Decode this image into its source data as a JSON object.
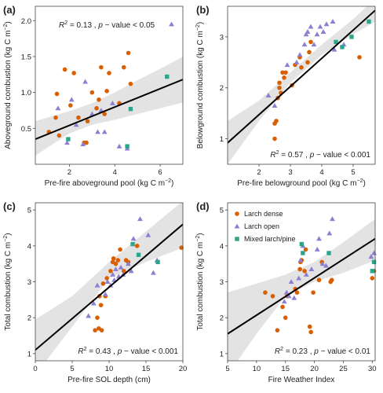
{
  "series_styles": [
    {
      "name": "Larch dense",
      "marker": "circle",
      "color": "#d95f02"
    },
    {
      "name": "Larch open",
      "marker": "triangle",
      "color": "#8c7fd1"
    },
    {
      "name": "Mixed larch/pine",
      "marker": "square",
      "color": "#2ca58d"
    }
  ],
  "chart_data": [
    {
      "type": "scatter",
      "panel": "(a)",
      "xlabel_main": "Pre-fire aboveground pool (kg C m",
      "xlabel_unit_exp": "−2",
      "xlabel_close": ")",
      "ylabel_main": "Aboveground combustion (kg C m",
      "ylabel_unit_exp": "−2",
      "ylabel_close": ")",
      "xlim": [
        0.5,
        7
      ],
      "ylim": [
        0,
        2.2
      ],
      "xticks": [
        2,
        4,
        6
      ],
      "yticks": [
        0.5,
        1.0,
        1.5,
        2.0
      ],
      "ytick_format": 1,
      "stat_r2": "= 0.13 ,",
      "stat_p": "− value < 0.05",
      "stat_pos": "top-left",
      "fit_line": {
        "x": [
          0.5,
          7
        ],
        "y": [
          0.35,
          1.18
        ]
      },
      "conf_band": {
        "x": [
          0.5,
          2,
          3,
          4,
          5,
          6,
          7
        ],
        "upper": [
          0.6,
          0.74,
          0.85,
          1.0,
          1.17,
          1.33,
          1.5
        ],
        "lower": [
          0.12,
          0.43,
          0.55,
          0.62,
          0.7,
          0.78,
          0.86
        ]
      },
      "series": [
        {
          "name": "Larch dense",
          "points": [
            [
              1.1,
              0.45
            ],
            [
              1.4,
              0.65
            ],
            [
              1.45,
              0.98
            ],
            [
              1.55,
              0.4
            ],
            [
              1.8,
              1.32
            ],
            [
              2.05,
              0.82
            ],
            [
              2.2,
              1.27
            ],
            [
              2.4,
              0.65
            ],
            [
              2.65,
              0.3
            ],
            [
              2.75,
              0.3
            ],
            [
              2.8,
              0.6
            ],
            [
              3.0,
              1.0
            ],
            [
              3.2,
              0.78
            ],
            [
              3.3,
              0.9
            ],
            [
              3.4,
              1.35
            ],
            [
              3.55,
              0.7
            ],
            [
              3.65,
              1.02
            ],
            [
              3.75,
              1.27
            ],
            [
              4.2,
              0.85
            ],
            [
              4.4,
              1.35
            ],
            [
              4.6,
              1.55
            ],
            [
              4.7,
              1.12
            ]
          ]
        },
        {
          "name": "Larch open",
          "points": [
            [
              1.5,
              0.78
            ],
            [
              1.9,
              0.3
            ],
            [
              2.1,
              0.9
            ],
            [
              2.3,
              0.55
            ],
            [
              2.6,
              0.28
            ],
            [
              2.7,
              1.15
            ],
            [
              3.0,
              0.7
            ],
            [
              3.25,
              0.45
            ],
            [
              3.4,
              0.75
            ],
            [
              3.55,
              0.45
            ],
            [
              3.9,
              0.85
            ],
            [
              4.2,
              0.25
            ],
            [
              4.55,
              0.22
            ],
            [
              6.5,
              1.95
            ]
          ]
        },
        {
          "name": "Mixed larch/pine",
          "points": [
            [
              1.95,
              0.35
            ],
            [
              4.55,
              0.25
            ],
            [
              4.7,
              0.77
            ],
            [
              6.3,
              1.22
            ]
          ]
        }
      ]
    },
    {
      "type": "scatter",
      "panel": "(b)",
      "xlabel_main": "Pre-fire belowground pool (kg C m",
      "xlabel_unit_exp": "−2",
      "xlabel_close": ")",
      "ylabel_main": "Belowground combustion (kg C m",
      "ylabel_unit_exp": "−2",
      "ylabel_close": ")",
      "xlim": [
        1,
        5.7
      ],
      "ylim": [
        0.5,
        3.6
      ],
      "xticks": [
        2,
        3,
        4,
        5
      ],
      "yticks": [
        1,
        2,
        3
      ],
      "ytick_format": 0,
      "stat_r2": "= 0.57 ,",
      "stat_p": "− value < 0.001",
      "stat_pos": "bottom-right",
      "fit_line": {
        "x": [
          1,
          5.7
        ],
        "y": [
          0.92,
          3.52
        ]
      },
      "conf_band": {
        "x": [
          1,
          2,
          3,
          4,
          5,
          5.7
        ],
        "upper": [
          1.35,
          1.75,
          2.3,
          2.85,
          3.35,
          3.75
        ],
        "lower": [
          0.5,
          1.35,
          2.1,
          2.65,
          3.05,
          3.3
        ]
      },
      "series": [
        {
          "name": "Larch dense",
          "points": [
            [
              2.5,
              1.0
            ],
            [
              2.5,
              1.3
            ],
            [
              2.55,
              1.35
            ],
            [
              2.6,
              1.8
            ],
            [
              2.65,
              2.0
            ],
            [
              2.65,
              2.1
            ],
            [
              2.7,
              1.9
            ],
            [
              2.75,
              2.3
            ],
            [
              2.8,
              2.2
            ],
            [
              2.85,
              2.3
            ],
            [
              3.05,
              2.05
            ],
            [
              3.15,
              2.45
            ],
            [
              3.3,
              2.6
            ],
            [
              3.35,
              2.4
            ],
            [
              3.55,
              2.5
            ],
            [
              3.6,
              2.7
            ],
            [
              3.65,
              2.9
            ],
            [
              5.2,
              2.6
            ]
          ]
        },
        {
          "name": "Larch open",
          "points": [
            [
              2.3,
              1.85
            ],
            [
              2.5,
              1.65
            ],
            [
              2.9,
              2.45
            ],
            [
              3.2,
              2.5
            ],
            [
              3.3,
              2.65
            ],
            [
              3.45,
              2.85
            ],
            [
              3.5,
              3.05
            ],
            [
              3.55,
              3.1
            ],
            [
              3.65,
              3.2
            ],
            [
              3.75,
              2.85
            ],
            [
              3.85,
              3.05
            ],
            [
              3.95,
              3.2
            ],
            [
              4.05,
              3.1
            ],
            [
              4.15,
              3.25
            ],
            [
              4.35,
              3.3
            ],
            [
              4.4,
              2.75
            ],
            [
              4.7,
              2.85
            ]
          ]
        },
        {
          "name": "Mixed larch/pine",
          "points": [
            [
              4.45,
              2.9
            ],
            [
              4.65,
              2.8
            ],
            [
              4.95,
              3.0
            ],
            [
              5.5,
              3.3
            ]
          ]
        }
      ]
    },
    {
      "type": "scatter",
      "panel": "(c)",
      "xlabel_main": "Pre-fire SOL depth (cm)",
      "xlabel_unit_exp": "",
      "xlabel_close": "",
      "ylabel_main": "Total combustion (kg C m",
      "ylabel_unit_exp": "−2",
      "ylabel_close": ")",
      "xlim": [
        0,
        20
      ],
      "ylim": [
        0.8,
        5.2
      ],
      "xticks": [
        0,
        5,
        10,
        15,
        20
      ],
      "yticks": [
        1,
        2,
        3,
        4,
        5
      ],
      "ytick_format": 0,
      "stat_r2": "= 0.43 ,",
      "stat_p": "− value < 0.001",
      "stat_pos": "bottom-right",
      "fit_line": {
        "x": [
          0,
          20
        ],
        "y": [
          1.1,
          4.6
        ]
      },
      "conf_band": {
        "x": [
          0,
          5,
          10,
          15,
          20
        ],
        "upper": [
          1.95,
          2.6,
          3.55,
          4.4,
          5.25
        ],
        "lower": [
          0.4,
          1.75,
          3.1,
          3.55,
          3.95
        ]
      },
      "series": [
        {
          "name": "Larch dense",
          "points": [
            [
              8.1,
              1.65
            ],
            [
              8.4,
              2.0
            ],
            [
              8.6,
              1.7
            ],
            [
              8.7,
              2.6
            ],
            [
              8.9,
              2.35
            ],
            [
              9.0,
              1.65
            ],
            [
              9.2,
              2.95
            ],
            [
              9.5,
              2.6
            ],
            [
              9.7,
              3.1
            ],
            [
              10.2,
              3.3
            ],
            [
              10.5,
              3.55
            ],
            [
              10.6,
              3.65
            ],
            [
              10.9,
              3.5
            ],
            [
              11.2,
              3.6
            ],
            [
              11.5,
              3.9
            ],
            [
              12.0,
              3.3
            ],
            [
              12.3,
              3.6
            ],
            [
              12.6,
              3.55
            ],
            [
              13.8,
              4.0
            ],
            [
              19.8,
              3.95
            ]
          ]
        },
        {
          "name": "Larch open",
          "points": [
            [
              7.2,
              2.05
            ],
            [
              7.9,
              2.4
            ],
            [
              8.4,
              2.9
            ],
            [
              9.5,
              2.65
            ],
            [
              9.8,
              3.0
            ],
            [
              10.2,
              2.9
            ],
            [
              10.5,
              3.2
            ],
            [
              10.7,
              3.05
            ],
            [
              10.9,
              3.35
            ],
            [
              11.3,
              3.15
            ],
            [
              11.6,
              3.4
            ],
            [
              11.9,
              3.2
            ],
            [
              12.6,
              3.5
            ],
            [
              13.0,
              3.3
            ],
            [
              13.3,
              4.2
            ],
            [
              14.2,
              4.75
            ],
            [
              15.3,
              4.3
            ],
            [
              16.0,
              3.25
            ],
            [
              16.5,
              3.6
            ]
          ]
        },
        {
          "name": "Mixed larch/pine",
          "points": [
            [
              13.2,
              4.05
            ],
            [
              14.0,
              3.75
            ],
            [
              16.6,
              3.55
            ]
          ]
        }
      ]
    },
    {
      "type": "scatter",
      "panel": "(d)",
      "xlabel_main": "Fire Weather Index",
      "xlabel_unit_exp": "",
      "xlabel_close": "",
      "ylabel_main": "Total combustion (kg C m",
      "ylabel_unit_exp": "−2",
      "ylabel_close": ")",
      "xlim": [
        5,
        30.5
      ],
      "ylim": [
        0.8,
        5.2
      ],
      "xticks": [
        5,
        10,
        15,
        20,
        25,
        30
      ],
      "yticks": [
        1,
        2,
        3,
        4,
        5
      ],
      "ytick_format": 0,
      "stat_r2": "= 0.23 ,",
      "stat_p": "− value < 0.01",
      "stat_pos": "bottom-right",
      "legend": "top-left",
      "fit_line": {
        "x": [
          5,
          30.5
        ],
        "y": [
          1.55,
          4.2
        ]
      },
      "conf_band": {
        "x": [
          5,
          10,
          15,
          20,
          25,
          30.5
        ],
        "upper": [
          2.7,
          2.95,
          3.2,
          3.55,
          4.1,
          4.75
        ],
        "lower": [
          0.4,
          1.55,
          2.6,
          3.0,
          3.25,
          3.6
        ]
      },
      "series": [
        {
          "name": "Larch dense",
          "points": [
            [
              11.5,
              2.7
            ],
            [
              12.8,
              2.6
            ],
            [
              13.6,
              1.65
            ],
            [
              14.5,
              2.3
            ],
            [
              15.0,
              2.0
            ],
            [
              15.3,
              2.6
            ],
            [
              16.7,
              2.8
            ],
            [
              17.0,
              2.7
            ],
            [
              17.5,
              3.35
            ],
            [
              17.6,
              3.55
            ],
            [
              17.8,
              3.6
            ],
            [
              18.3,
              3.3
            ],
            [
              18.5,
              3.9
            ],
            [
              19.2,
              1.75
            ],
            [
              19.4,
              1.6
            ],
            [
              19.8,
              2.7
            ],
            [
              20.8,
              3.05
            ],
            [
              21.3,
              3.55
            ],
            [
              22.8,
              3.0
            ],
            [
              23.0,
              3.05
            ],
            [
              30.0,
              3.1
            ],
            [
              30.3,
              3.3
            ]
          ]
        },
        {
          "name": "Larch open",
          "points": [
            [
              14.8,
              2.45
            ],
            [
              15.2,
              2.7
            ],
            [
              15.6,
              2.6
            ],
            [
              16.0,
              3.0
            ],
            [
              16.5,
              2.55
            ],
            [
              17.3,
              3.1
            ],
            [
              17.6,
              3.6
            ],
            [
              18.0,
              4.0
            ],
            [
              18.6,
              3.2
            ],
            [
              19.5,
              3.35
            ],
            [
              20.5,
              3.9
            ],
            [
              20.8,
              4.2
            ],
            [
              21.4,
              3.5
            ],
            [
              22.0,
              3.45
            ],
            [
              22.6,
              4.35
            ],
            [
              23.1,
              4.75
            ],
            [
              29.8,
              3.7
            ],
            [
              30.3,
              3.8
            ]
          ]
        },
        {
          "name": "Mixed larch/pine",
          "points": [
            [
              17.8,
              4.05
            ],
            [
              18.0,
              3.8
            ],
            [
              22.5,
              3.8
            ],
            [
              30.3,
              3.55
            ],
            [
              30.0,
              3.3
            ]
          ]
        }
      ]
    }
  ]
}
